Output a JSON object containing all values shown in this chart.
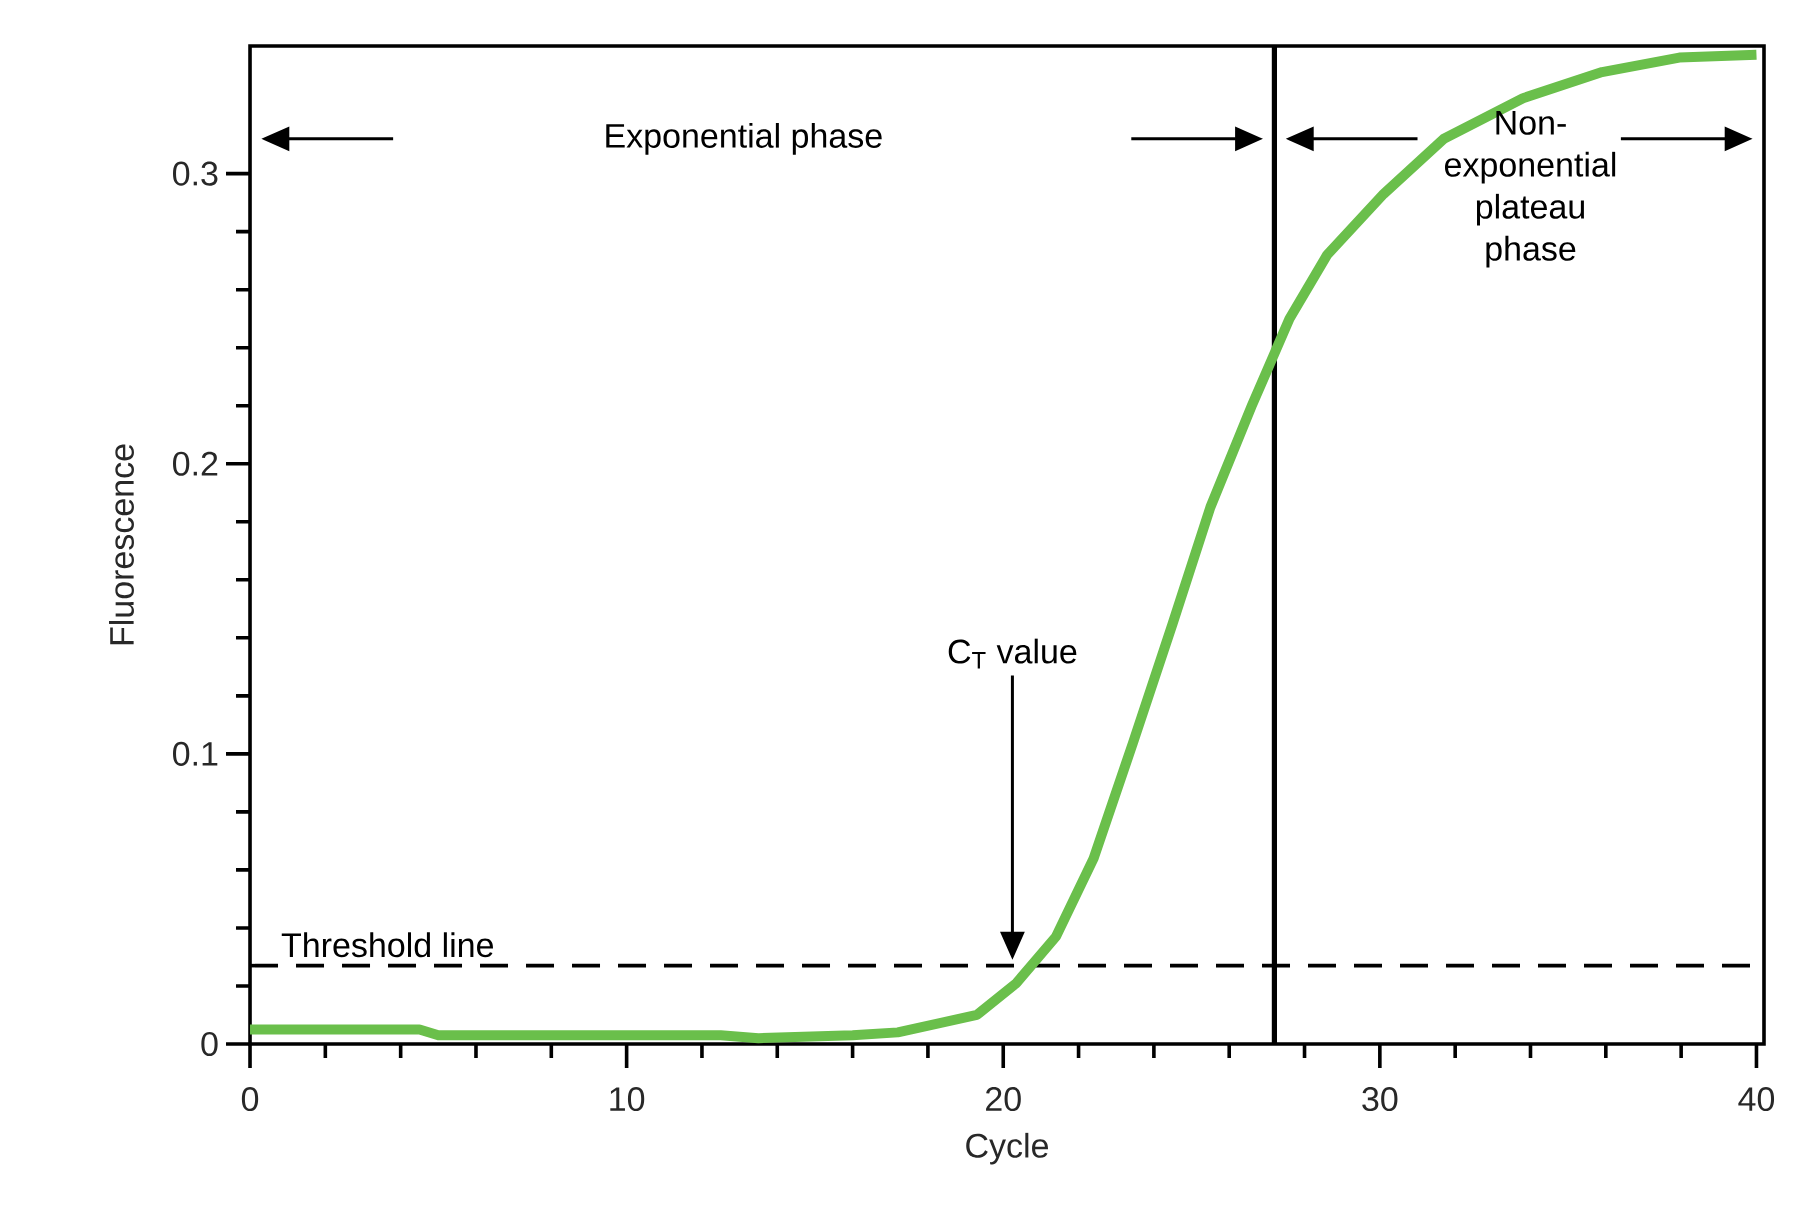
{
  "chart_data": {
    "type": "line",
    "xlabel": "Cycle",
    "ylabel": "Fluorescence",
    "x": [
      0,
      4.5,
      5,
      12.5,
      13.5,
      16,
      17.2,
      19.3,
      20.35,
      21.4,
      22.4,
      23.45,
      24.5,
      25.5,
      26.6,
      27.6,
      28.6,
      30.1,
      31.7,
      33.8,
      35.9,
      37.95,
      40
    ],
    "series": [
      {
        "color": "#6abf4b",
        "values": [
          0.005,
          0.005,
          0.003,
          0.003,
          0.002,
          0.003,
          0.004,
          0.01,
          0.021,
          0.037,
          0.064,
          0.104,
          0.145,
          0.185,
          0.22,
          0.25,
          0.272,
          0.293,
          0.312,
          0.326,
          0.335,
          0.34,
          0.341
        ]
      }
    ],
    "xlim": [
      0,
      40.2
    ],
    "ylim": [
      0,
      0.344
    ],
    "xticks": [
      0,
      10,
      20,
      30,
      40
    ],
    "yticks": [
      0,
      0.1,
      0.2,
      0.3
    ],
    "marker": "none",
    "line_style": "solid",
    "ref_lines": [
      {
        "axis": "y",
        "value": 0.027,
        "label": "Threshold line",
        "color": "#000000",
        "line_style": "dashed"
      },
      {
        "axis": "x",
        "value": 27.2,
        "color": "#000000",
        "line_style": "solid"
      }
    ],
    "annotations": [
      "Exponential phase",
      "Non-exponential plateau phase",
      "C$_{T}$ value"
    ]
  }
}
